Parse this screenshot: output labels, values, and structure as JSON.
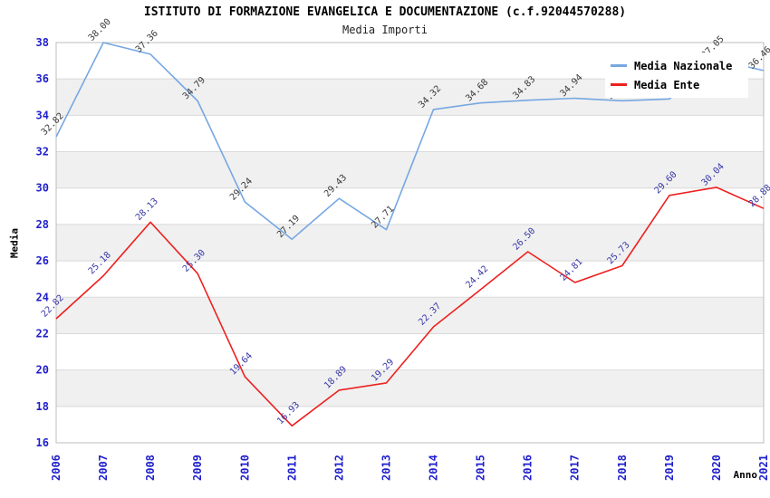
{
  "title": "ISTITUTO DI FORMAZIONE EVANGELICA E DOCUMENTAZIONE (c.f.92044570288)",
  "subtitle": "Media Importi",
  "legend": {
    "entries": [
      {
        "label": "Media Nazionale",
        "color": "#76a7e2"
      },
      {
        "label": "Media Ente",
        "color": "#ee2020"
      }
    ]
  },
  "chart_data": {
    "type": "line",
    "x": [
      "2006",
      "2007",
      "2008",
      "2009",
      "2010",
      "2011",
      "2012",
      "2013",
      "2014",
      "2015",
      "2016",
      "2017",
      "2018",
      "2019",
      "2020",
      "2021"
    ],
    "series": [
      {
        "name": "Media Nazionale",
        "color": "#76a7e2",
        "label_color": "#3a3a3a",
        "values": [
          32.82,
          38.0,
          37.36,
          34.79,
          29.24,
          27.19,
          29.43,
          27.71,
          34.32,
          34.68,
          34.83,
          34.94,
          34.8,
          34.9,
          37.05,
          36.46
        ]
      },
      {
        "name": "Media Ente",
        "color": "#ee2020",
        "label_color": "#3939a8",
        "values": [
          22.82,
          25.18,
          28.13,
          25.3,
          19.64,
          16.93,
          18.89,
          19.29,
          22.37,
          24.42,
          26.5,
          24.81,
          25.73,
          29.6,
          30.04,
          28.88
        ]
      }
    ],
    "xlabel": "Anno",
    "ylabel": "Media",
    "ylim": [
      16,
      38
    ],
    "ytick_step": 2,
    "yticks": [
      16,
      18,
      20,
      22,
      24,
      26,
      28,
      30,
      32,
      34,
      36,
      38
    ],
    "value_decimals": 2,
    "grid": true,
    "legend_position": "top-right",
    "colors": {
      "tick_label": "#1f1fcc",
      "grid_line": "#d9d9d9",
      "plot_border": "#bdbdbd",
      "band_white": "#ffffff",
      "band_gray": "#f0f0f0"
    }
  }
}
